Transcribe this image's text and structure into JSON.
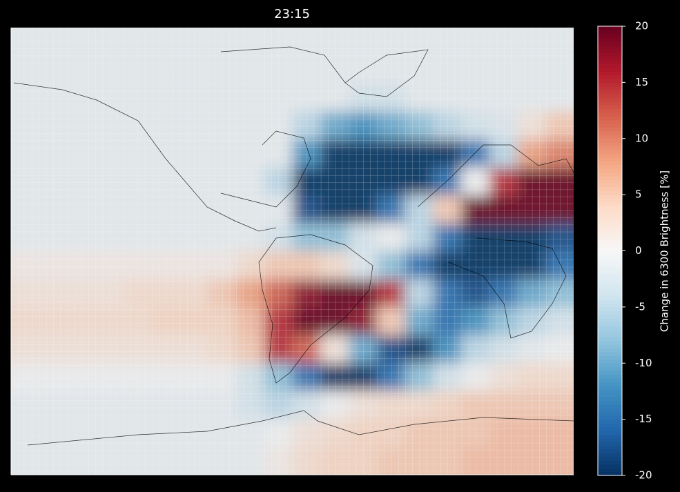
{
  "chart_data": {
    "type": "heatmap",
    "title": "23:15",
    "colorbar_label": "Change in 6300 Brightness [%]",
    "zlim": [
      -20,
      20
    ],
    "zticks": [
      -20,
      -15,
      -10,
      -5,
      0,
      5,
      10,
      15,
      20
    ],
    "colorscale": [
      "#053061",
      "#2166ac",
      "#4393c3",
      "#92c5de",
      "#d1e5f0",
      "#f7f7f7",
      "#fddbc7",
      "#f4a582",
      "#d6604d",
      "#b2182b",
      "#67001f"
    ],
    "grid": true,
    "z": [
      [
        -1,
        -1,
        -1,
        -1,
        -1,
        -1,
        -1,
        -1,
        -1,
        -1,
        -1,
        -1,
        -1,
        -1,
        -1,
        -1,
        -1,
        -1,
        -1,
        -1
      ],
      [
        -1,
        -1,
        -1,
        -1,
        -1,
        -1,
        -1,
        -1,
        -1,
        -1,
        -1,
        -1,
        -1,
        -1,
        -1,
        -1,
        -1,
        -1,
        -1,
        -1
      ],
      [
        -1,
        -1,
        -1,
        -1,
        -1,
        -1,
        -1,
        -1,
        -1,
        -1,
        -1,
        -1,
        -3,
        -3,
        -1,
        -1,
        -1,
        -1,
        -1,
        -1
      ],
      [
        -1,
        -1,
        -1,
        -1,
        -1,
        -1,
        -1,
        -1,
        -1,
        -1,
        -5,
        -10,
        -12,
        -10,
        -8,
        -5,
        -3,
        -2,
        2,
        5
      ],
      [
        -1,
        -1,
        -1,
        -1,
        -1,
        -1,
        -1,
        -1,
        -1,
        -1,
        -12,
        -20,
        -20,
        -20,
        -20,
        -20,
        -15,
        -5,
        8,
        10
      ],
      [
        -1,
        -1,
        -1,
        -1,
        -1,
        -1,
        -1,
        -1,
        -1,
        -5,
        -20,
        -20,
        -20,
        -20,
        -20,
        -15,
        0,
        15,
        20,
        20
      ],
      [
        -1,
        -1,
        -1,
        -1,
        -1,
        -1,
        -1,
        -1,
        -1,
        -1,
        -18,
        -20,
        -20,
        -15,
        -5,
        5,
        20,
        20,
        20,
        20
      ],
      [
        -1,
        -1,
        -1,
        -1,
        -1,
        -1,
        -1,
        -1,
        -1,
        -3,
        -8,
        -8,
        -3,
        0,
        -5,
        -15,
        -20,
        -20,
        -20,
        -18
      ],
      [
        1,
        1,
        1,
        1,
        1,
        1,
        1,
        1,
        3,
        5,
        5,
        3,
        -2,
        -8,
        -15,
        -20,
        -20,
        -20,
        -20,
        -15
      ],
      [
        2,
        2,
        2,
        2,
        3,
        3,
        3,
        5,
        8,
        12,
        18,
        20,
        20,
        15,
        -5,
        -15,
        -18,
        -15,
        -10,
        -8
      ],
      [
        3,
        3,
        3,
        3,
        3,
        4,
        4,
        4,
        6,
        15,
        20,
        20,
        18,
        5,
        -10,
        -15,
        -12,
        -8,
        -5,
        -3
      ],
      [
        2,
        2,
        2,
        2,
        2,
        2,
        2,
        3,
        5,
        15,
        12,
        2,
        -10,
        -18,
        -20,
        -12,
        -5,
        -3,
        -1,
        0
      ],
      [
        0,
        0,
        0,
        0,
        0,
        0,
        0,
        0,
        -3,
        -8,
        -15,
        -20,
        -20,
        -15,
        -8,
        -3,
        0,
        2,
        3,
        3
      ],
      [
        -1,
        -1,
        -1,
        -1,
        -1,
        -1,
        -1,
        -1,
        -3,
        -5,
        -3,
        0,
        2,
        3,
        3,
        4,
        5,
        5,
        5,
        5
      ],
      [
        -1,
        -1,
        -1,
        -1,
        -1,
        -1,
        -1,
        -1,
        -1,
        0,
        2,
        3,
        4,
        4,
        5,
        5,
        5,
        6,
        6,
        6
      ],
      [
        -1,
        -1,
        -1,
        -1,
        -1,
        -1,
        -1,
        -1,
        -1,
        1,
        3,
        4,
        4,
        5,
        5,
        5,
        6,
        6,
        6,
        6
      ]
    ]
  }
}
